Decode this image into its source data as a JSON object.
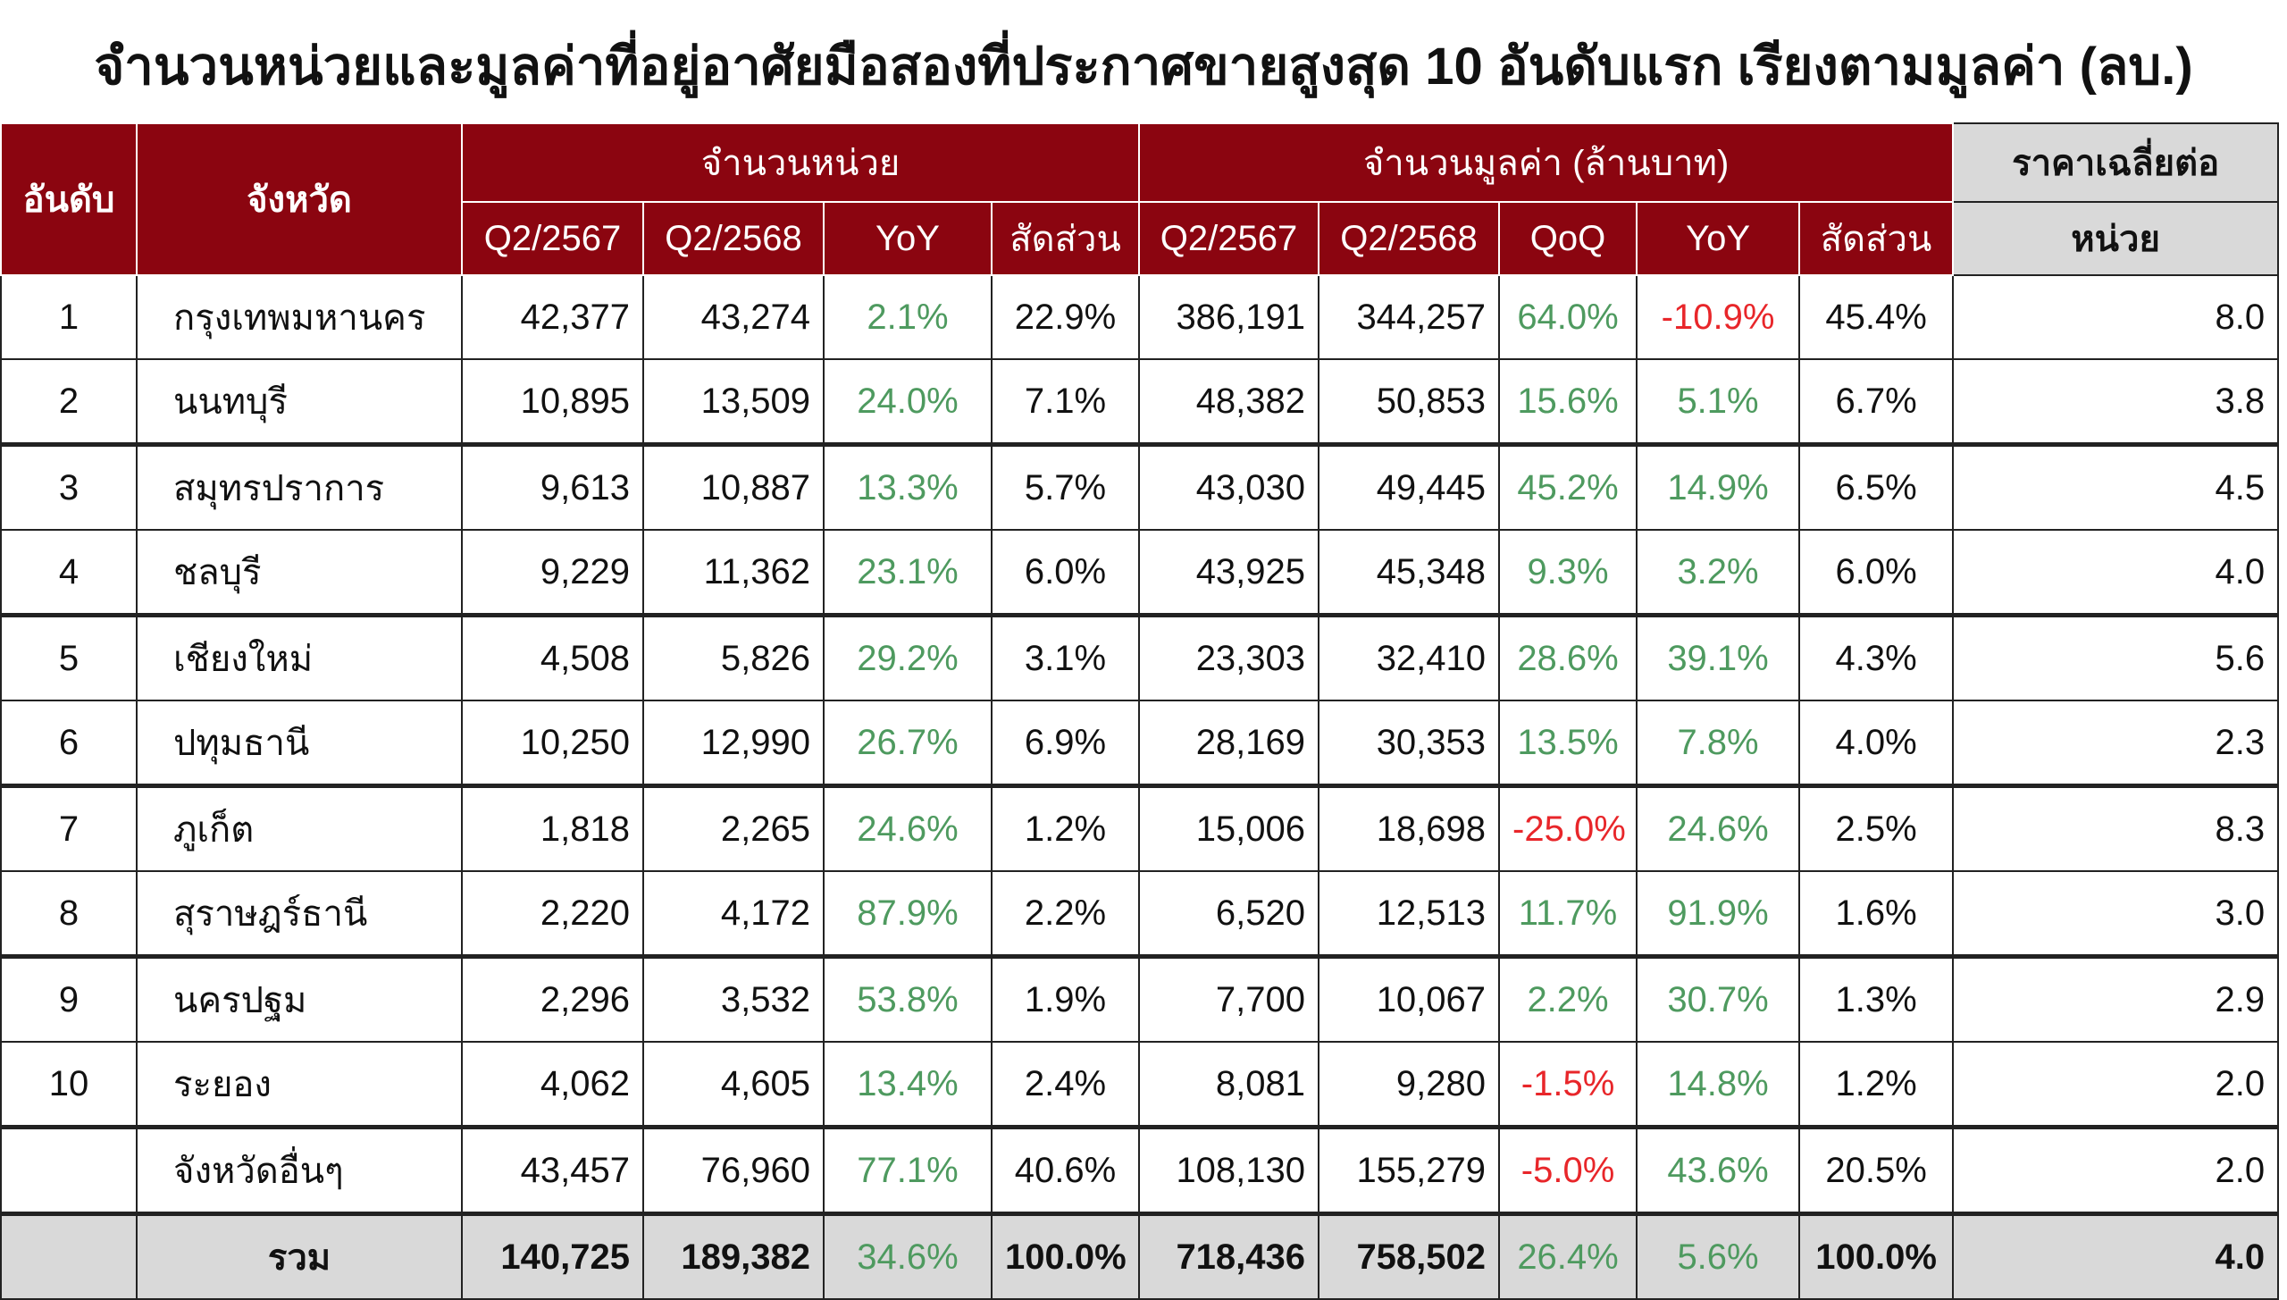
{
  "title": "จำนวนหน่วยและมูลค่าที่อยู่อาศัยมือสองที่ประกาศขายสูงสุด 10 อันดับแรก เรียงตามมูลค่า (ลบ.)",
  "colors": {
    "header": "#8B0510",
    "total_bg": "#D9D9D9",
    "positive": "#4E9A5F",
    "negative": "#E8262A"
  },
  "headers": {
    "rank": "อันดับ",
    "province": "จังหวัด",
    "units_group": "จำนวนหน่วย",
    "value_group": "จำนวนมูลค่า (ล้านบาท)",
    "avg_price_line1": "ราคาเฉลี่ยต่อ",
    "avg_price_line2": "หน่วย",
    "units_cols": [
      "Q2/2567",
      "Q2/2568",
      "YoY",
      "สัดส่วน"
    ],
    "value_cols": [
      "Q2/2567",
      "Q2/2568",
      "QoQ",
      "YoY",
      "สัดส่วน"
    ]
  },
  "rows": [
    {
      "rank": "1",
      "province": "กรุงเทพมหานคร",
      "u67": "42,377",
      "u68": "43,274",
      "uyoy": "2.1%",
      "ushare": "22.9%",
      "v67": "386,191",
      "v68": "344,257",
      "vqoq": "64.0%",
      "vyoy": "-10.9%",
      "vshare": "45.4%",
      "avg": "8.0"
    },
    {
      "rank": "2",
      "province": "นนทบุรี",
      "u67": "10,895",
      "u68": "13,509",
      "uyoy": "24.0%",
      "ushare": "7.1%",
      "v67": "48,382",
      "v68": "50,853",
      "vqoq": "15.6%",
      "vyoy": "5.1%",
      "vshare": "6.7%",
      "avg": "3.8"
    },
    {
      "rank": "3",
      "province": "สมุทรปราการ",
      "u67": "9,613",
      "u68": "10,887",
      "uyoy": "13.3%",
      "ushare": "5.7%",
      "v67": "43,030",
      "v68": "49,445",
      "vqoq": "45.2%",
      "vyoy": "14.9%",
      "vshare": "6.5%",
      "avg": "4.5"
    },
    {
      "rank": "4",
      "province": "ชลบุรี",
      "u67": "9,229",
      "u68": "11,362",
      "uyoy": "23.1%",
      "ushare": "6.0%",
      "v67": "43,925",
      "v68": "45,348",
      "vqoq": "9.3%",
      "vyoy": "3.2%",
      "vshare": "6.0%",
      "avg": "4.0"
    },
    {
      "rank": "5",
      "province": "เชียงใหม่",
      "u67": "4,508",
      "u68": "5,826",
      "uyoy": "29.2%",
      "ushare": "3.1%",
      "v67": "23,303",
      "v68": "32,410",
      "vqoq": "28.6%",
      "vyoy": "39.1%",
      "vshare": "4.3%",
      "avg": "5.6"
    },
    {
      "rank": "6",
      "province": "ปทุมธานี",
      "u67": "10,250",
      "u68": "12,990",
      "uyoy": "26.7%",
      "ushare": "6.9%",
      "v67": "28,169",
      "v68": "30,353",
      "vqoq": "13.5%",
      "vyoy": "7.8%",
      "vshare": "4.0%",
      "avg": "2.3"
    },
    {
      "rank": "7",
      "province": "ภูเก็ต",
      "u67": "1,818",
      "u68": "2,265",
      "uyoy": "24.6%",
      "ushare": "1.2%",
      "v67": "15,006",
      "v68": "18,698",
      "vqoq": "-25.0%",
      "vyoy": "24.6%",
      "vshare": "2.5%",
      "avg": "8.3"
    },
    {
      "rank": "8",
      "province": "สุราษฎร์ธานี",
      "u67": "2,220",
      "u68": "4,172",
      "uyoy": "87.9%",
      "ushare": "2.2%",
      "v67": "6,520",
      "v68": "12,513",
      "vqoq": "11.7%",
      "vyoy": "91.9%",
      "vshare": "1.6%",
      "avg": "3.0"
    },
    {
      "rank": "9",
      "province": "นครปฐม",
      "u67": "2,296",
      "u68": "3,532",
      "uyoy": "53.8%",
      "ushare": "1.9%",
      "v67": "7,700",
      "v68": "10,067",
      "vqoq": "2.2%",
      "vyoy": "30.7%",
      "vshare": "1.3%",
      "avg": "2.9"
    },
    {
      "rank": "10",
      "province": "ระยอง",
      "u67": "4,062",
      "u68": "4,605",
      "uyoy": "13.4%",
      "ushare": "2.4%",
      "v67": "8,081",
      "v68": "9,280",
      "vqoq": "-1.5%",
      "vyoy": "14.8%",
      "vshare": "1.2%",
      "avg": "2.0"
    },
    {
      "rank": "",
      "province": "จังหวัดอื่นๆ",
      "u67": "43,457",
      "u68": "76,960",
      "uyoy": "77.1%",
      "ushare": "40.6%",
      "v67": "108,130",
      "v68": "155,279",
      "vqoq": "-5.0%",
      "vyoy": "43.6%",
      "vshare": "20.5%",
      "avg": "2.0"
    }
  ],
  "total": {
    "label": "รวม",
    "u67": "140,725",
    "u68": "189,382",
    "uyoy": "34.6%",
    "ushare": "100.0%",
    "v67": "718,436",
    "v68": "758,502",
    "vqoq": "26.4%",
    "vyoy": "5.6%",
    "vshare": "100.0%",
    "avg": "4.0"
  }
}
